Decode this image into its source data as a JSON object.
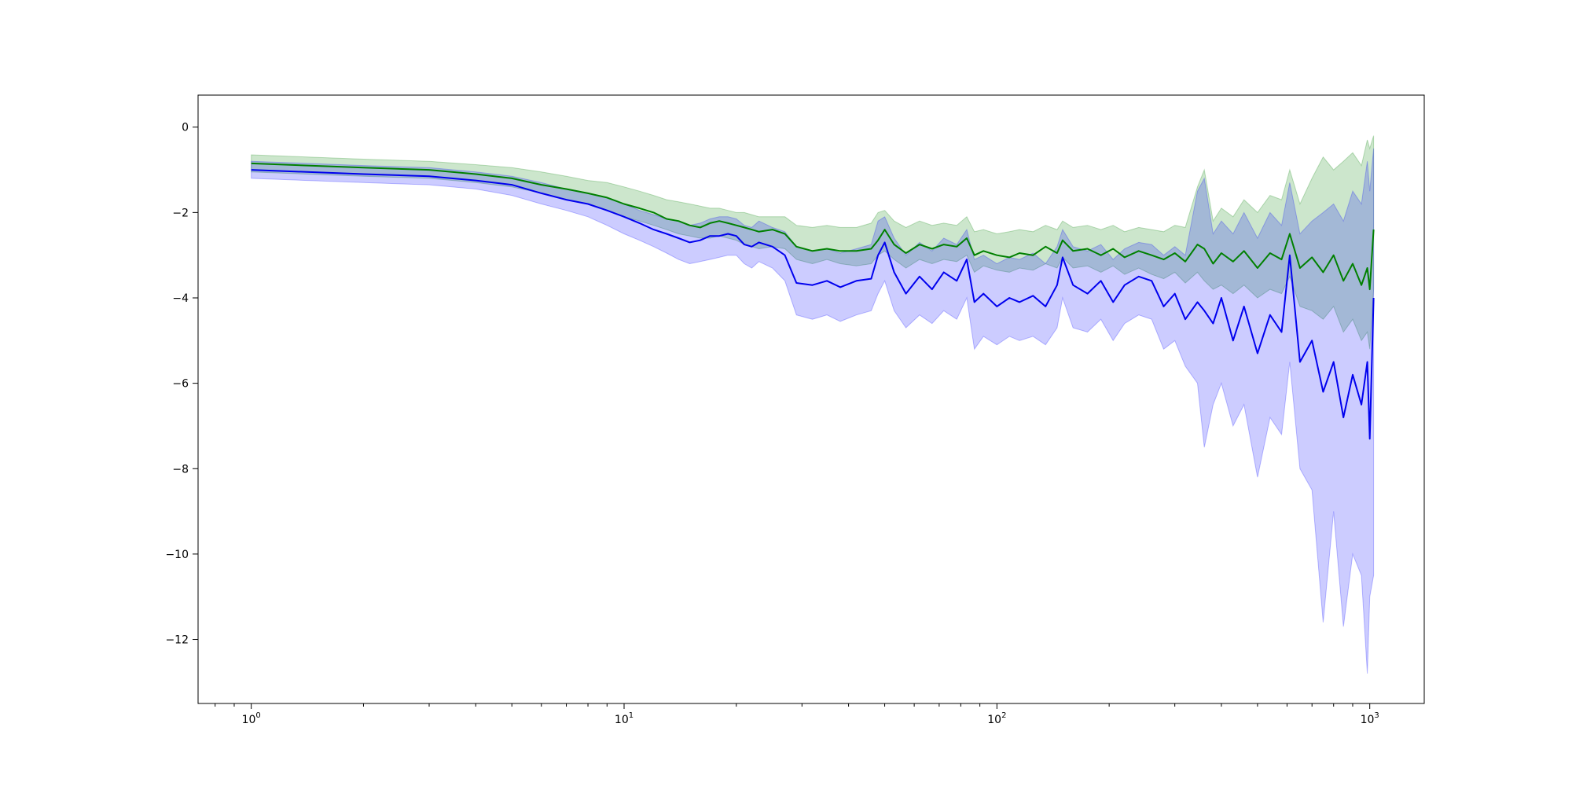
{
  "chart_data": {
    "type": "line",
    "title": "",
    "xlabel": "",
    "ylabel": "",
    "x_scale": "log",
    "xlim": [
      0.72,
      1400
    ],
    "ylim": [
      -13.5,
      0.75
    ],
    "grid": false,
    "legend": "none",
    "x_ticks": [
      {
        "value": 1,
        "base": "10",
        "exp": "0"
      },
      {
        "value": 10,
        "base": "10",
        "exp": "1"
      },
      {
        "value": 100,
        "base": "10",
        "exp": "2"
      },
      {
        "value": 1000,
        "base": "10",
        "exp": "3"
      }
    ],
    "y_ticks": [
      {
        "value": 0,
        "label": "0"
      },
      {
        "value": -2,
        "label": "−2"
      },
      {
        "value": -4,
        "label": "−4"
      },
      {
        "value": -6,
        "label": "−6"
      },
      {
        "value": -8,
        "label": "−8"
      },
      {
        "value": -10,
        "label": "−10"
      },
      {
        "value": -12,
        "label": "−12"
      }
    ],
    "series": [
      {
        "color": "#008000",
        "band_color": "#008000",
        "band_opacity": 0.2,
        "points": [
          [
            1,
            -0.85,
            -0.65,
            -1.05
          ],
          [
            2,
            -0.95,
            -0.75,
            -1.15
          ],
          [
            3,
            -1.0,
            -0.8,
            -1.2
          ],
          [
            4,
            -1.1,
            -0.88,
            -1.3
          ],
          [
            5,
            -1.2,
            -0.95,
            -1.4
          ],
          [
            6,
            -1.35,
            -1.05,
            -1.55
          ],
          [
            7,
            -1.45,
            -1.15,
            -1.7
          ],
          [
            8,
            -1.55,
            -1.25,
            -1.8
          ],
          [
            9,
            -1.65,
            -1.3,
            -1.95
          ],
          [
            10,
            -1.8,
            -1.4,
            -2.1
          ],
          [
            11,
            -1.9,
            -1.5,
            -2.2
          ],
          [
            12,
            -2.0,
            -1.6,
            -2.3
          ],
          [
            13,
            -2.15,
            -1.7,
            -2.4
          ],
          [
            14,
            -2.2,
            -1.75,
            -2.5
          ],
          [
            15,
            -2.3,
            -1.8,
            -2.55
          ],
          [
            16,
            -2.35,
            -1.85,
            -2.6
          ],
          [
            17,
            -2.25,
            -1.9,
            -2.6
          ],
          [
            18,
            -2.2,
            -1.9,
            -2.55
          ],
          [
            19,
            -2.25,
            -1.95,
            -2.6
          ],
          [
            20,
            -2.3,
            -2.0,
            -2.65
          ],
          [
            21,
            -2.35,
            -2.0,
            -2.75
          ],
          [
            22,
            -2.4,
            -2.05,
            -2.8
          ],
          [
            23,
            -2.45,
            -2.1,
            -2.85
          ],
          [
            25,
            -2.4,
            -2.1,
            -2.8
          ],
          [
            27,
            -2.5,
            -2.1,
            -2.85
          ],
          [
            29,
            -2.8,
            -2.3,
            -3.1
          ],
          [
            32,
            -2.9,
            -2.35,
            -3.2
          ],
          [
            35,
            -2.85,
            -2.3,
            -3.1
          ],
          [
            38,
            -2.9,
            -2.35,
            -3.2
          ],
          [
            42,
            -2.9,
            -2.35,
            -3.25
          ],
          [
            46,
            -2.85,
            -2.25,
            -3.2
          ],
          [
            48,
            -2.65,
            -2.0,
            -3.0
          ],
          [
            50,
            -2.4,
            -1.95,
            -2.9
          ],
          [
            53,
            -2.75,
            -2.2,
            -3.1
          ],
          [
            57,
            -2.95,
            -2.35,
            -3.3
          ],
          [
            62,
            -2.75,
            -2.2,
            -3.1
          ],
          [
            67,
            -2.85,
            -2.3,
            -3.2
          ],
          [
            72,
            -2.75,
            -2.25,
            -3.1
          ],
          [
            78,
            -2.8,
            -2.3,
            -3.15
          ],
          [
            83,
            -2.6,
            -2.1,
            -3.0
          ],
          [
            87,
            -3.0,
            -2.45,
            -3.4
          ],
          [
            92,
            -2.9,
            -2.4,
            -3.25
          ],
          [
            100,
            -3.0,
            -2.5,
            -3.35
          ],
          [
            108,
            -3.05,
            -2.45,
            -3.4
          ],
          [
            115,
            -2.95,
            -2.4,
            -3.3
          ],
          [
            125,
            -3.0,
            -2.45,
            -3.35
          ],
          [
            135,
            -2.8,
            -2.3,
            -3.2
          ],
          [
            145,
            -2.95,
            -2.4,
            -3.3
          ],
          [
            150,
            -2.65,
            -2.2,
            -3.05
          ],
          [
            160,
            -2.9,
            -2.35,
            -3.3
          ],
          [
            175,
            -2.85,
            -2.3,
            -3.25
          ],
          [
            190,
            -3.0,
            -2.4,
            -3.4
          ],
          [
            205,
            -2.85,
            -2.3,
            -3.25
          ],
          [
            220,
            -3.05,
            -2.45,
            -3.45
          ],
          [
            240,
            -2.9,
            -2.35,
            -3.3
          ],
          [
            260,
            -3.0,
            -2.4,
            -3.45
          ],
          [
            280,
            -3.1,
            -2.45,
            -3.55
          ],
          [
            300,
            -2.95,
            -2.3,
            -3.4
          ],
          [
            320,
            -3.15,
            -2.35,
            -3.65
          ],
          [
            345,
            -2.75,
            -1.4,
            -3.4
          ],
          [
            360,
            -2.85,
            -1.0,
            -3.6
          ],
          [
            380,
            -3.2,
            -2.2,
            -3.8
          ],
          [
            400,
            -2.95,
            -1.9,
            -3.7
          ],
          [
            430,
            -3.15,
            -2.1,
            -3.9
          ],
          [
            460,
            -2.9,
            -1.7,
            -3.7
          ],
          [
            500,
            -3.3,
            -2.0,
            -4.0
          ],
          [
            540,
            -2.95,
            -1.6,
            -3.8
          ],
          [
            580,
            -3.1,
            -1.7,
            -3.9
          ],
          [
            610,
            -2.5,
            -1.0,
            -3.5
          ],
          [
            650,
            -3.3,
            -1.8,
            -4.2
          ],
          [
            700,
            -3.05,
            -1.2,
            -4.3
          ],
          [
            750,
            -3.4,
            -0.7,
            -4.5
          ],
          [
            800,
            -3.0,
            -1.0,
            -4.2
          ],
          [
            850,
            -3.6,
            -0.8,
            -4.8
          ],
          [
            900,
            -3.2,
            -0.6,
            -4.5
          ],
          [
            950,
            -3.7,
            -0.9,
            -5.0
          ],
          [
            985,
            -3.3,
            -0.3,
            -4.8
          ],
          [
            1000,
            -3.8,
            -0.5,
            -5.2
          ],
          [
            1024,
            -2.4,
            -0.2,
            -3.8
          ]
        ]
      },
      {
        "color": "#0000ee",
        "band_color": "#0000ff",
        "band_opacity": 0.2,
        "points": [
          [
            1,
            -1.0,
            -0.8,
            -1.2
          ],
          [
            2,
            -1.1,
            -0.9,
            -1.3
          ],
          [
            3,
            -1.15,
            -0.95,
            -1.35
          ],
          [
            4,
            -1.25,
            -1.05,
            -1.45
          ],
          [
            5,
            -1.35,
            -1.15,
            -1.6
          ],
          [
            6,
            -1.55,
            -1.3,
            -1.8
          ],
          [
            7,
            -1.7,
            -1.45,
            -1.95
          ],
          [
            8,
            -1.8,
            -1.55,
            -2.1
          ],
          [
            9,
            -1.95,
            -1.65,
            -2.3
          ],
          [
            10,
            -2.1,
            -1.8,
            -2.5
          ],
          [
            11,
            -2.25,
            -1.95,
            -2.65
          ],
          [
            12,
            -2.4,
            -2.05,
            -2.8
          ],
          [
            13,
            -2.5,
            -2.15,
            -2.95
          ],
          [
            14,
            -2.6,
            -2.2,
            -3.1
          ],
          [
            15,
            -2.7,
            -2.3,
            -3.2
          ],
          [
            16,
            -2.65,
            -2.25,
            -3.15
          ],
          [
            17,
            -2.55,
            -2.15,
            -3.1
          ],
          [
            18,
            -2.55,
            -2.1,
            -3.05
          ],
          [
            19,
            -2.5,
            -2.1,
            -3.0
          ],
          [
            20,
            -2.55,
            -2.15,
            -3.0
          ],
          [
            21,
            -2.75,
            -2.3,
            -3.2
          ],
          [
            22,
            -2.8,
            -2.35,
            -3.3
          ],
          [
            23,
            -2.7,
            -2.2,
            -3.15
          ],
          [
            25,
            -2.8,
            -2.35,
            -3.3
          ],
          [
            27,
            -3.0,
            -2.45,
            -3.6
          ],
          [
            29,
            -3.65,
            -2.8,
            -4.4
          ],
          [
            32,
            -3.7,
            -2.9,
            -4.5
          ],
          [
            35,
            -3.6,
            -2.85,
            -4.4
          ],
          [
            38,
            -3.75,
            -2.95,
            -4.55
          ],
          [
            42,
            -3.6,
            -2.85,
            -4.4
          ],
          [
            46,
            -3.55,
            -2.75,
            -4.3
          ],
          [
            48,
            -3.0,
            -2.2,
            -3.9
          ],
          [
            50,
            -2.7,
            -2.1,
            -3.6
          ],
          [
            53,
            -3.4,
            -2.6,
            -4.3
          ],
          [
            57,
            -3.9,
            -3.0,
            -4.7
          ],
          [
            62,
            -3.5,
            -2.7,
            -4.4
          ],
          [
            67,
            -3.8,
            -2.9,
            -4.6
          ],
          [
            72,
            -3.4,
            -2.6,
            -4.3
          ],
          [
            78,
            -3.6,
            -2.75,
            -4.5
          ],
          [
            83,
            -3.1,
            -2.4,
            -4.0
          ],
          [
            87,
            -4.1,
            -3.1,
            -5.2
          ],
          [
            92,
            -3.9,
            -3.0,
            -4.9
          ],
          [
            100,
            -4.2,
            -3.2,
            -5.1
          ],
          [
            108,
            -4.0,
            -3.05,
            -4.9
          ],
          [
            115,
            -4.1,
            -3.1,
            -5.0
          ],
          [
            125,
            -3.95,
            -2.95,
            -4.9
          ],
          [
            135,
            -4.2,
            -3.2,
            -5.1
          ],
          [
            145,
            -3.7,
            -2.8,
            -4.7
          ],
          [
            150,
            -3.05,
            -2.4,
            -4.0
          ],
          [
            160,
            -3.7,
            -2.8,
            -4.7
          ],
          [
            175,
            -3.9,
            -2.9,
            -4.8
          ],
          [
            190,
            -3.6,
            -2.75,
            -4.5
          ],
          [
            205,
            -4.1,
            -3.1,
            -5.0
          ],
          [
            220,
            -3.7,
            -2.85,
            -4.6
          ],
          [
            240,
            -3.5,
            -2.7,
            -4.4
          ],
          [
            260,
            -3.6,
            -2.75,
            -4.5
          ],
          [
            280,
            -4.2,
            -3.0,
            -5.2
          ],
          [
            300,
            -3.9,
            -2.8,
            -5.0
          ],
          [
            320,
            -4.5,
            -3.0,
            -5.6
          ],
          [
            345,
            -4.1,
            -1.5,
            -6.0
          ],
          [
            360,
            -4.3,
            -1.2,
            -7.5
          ],
          [
            380,
            -4.6,
            -2.5,
            -6.5
          ],
          [
            400,
            -4.0,
            -2.2,
            -6.0
          ],
          [
            430,
            -5.0,
            -2.5,
            -7.0
          ],
          [
            460,
            -4.2,
            -2.0,
            -6.5
          ],
          [
            500,
            -5.3,
            -2.6,
            -8.2
          ],
          [
            540,
            -4.4,
            -2.0,
            -6.8
          ],
          [
            580,
            -4.8,
            -2.3,
            -7.2
          ],
          [
            610,
            -3.0,
            -1.3,
            -5.5
          ],
          [
            650,
            -5.5,
            -2.5,
            -8.0
          ],
          [
            700,
            -5.0,
            -2.2,
            -8.5
          ],
          [
            750,
            -6.2,
            -2.0,
            -11.6
          ],
          [
            800,
            -5.5,
            -1.8,
            -9.0
          ],
          [
            850,
            -6.8,
            -2.2,
            -11.7
          ],
          [
            900,
            -5.8,
            -1.5,
            -10.0
          ],
          [
            950,
            -6.5,
            -1.8,
            -10.5
          ],
          [
            985,
            -5.5,
            -0.8,
            -12.8
          ],
          [
            1000,
            -7.3,
            -1.5,
            -11.0
          ],
          [
            1024,
            -4.0,
            -0.5,
            -10.5
          ]
        ]
      }
    ]
  }
}
